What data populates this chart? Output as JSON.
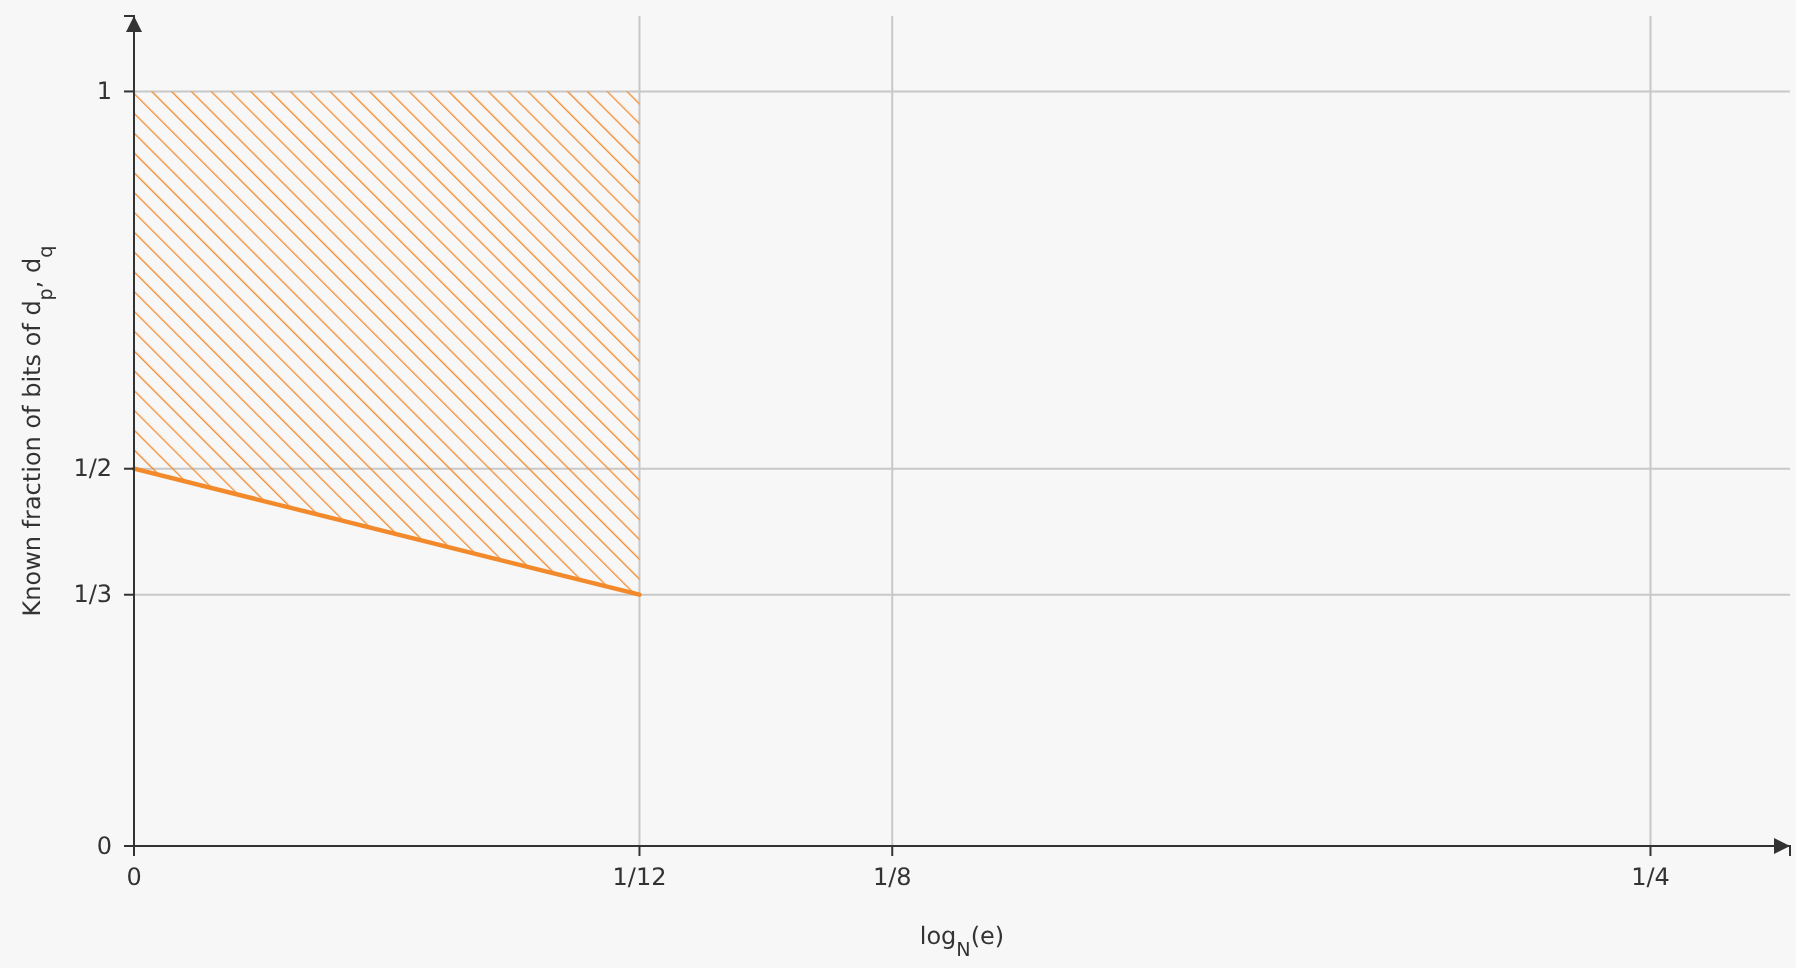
{
  "chart_data": {
    "type": "line",
    "xlabel": "log$_{N}$(e)",
    "ylabel": "Known fraction of bits of d$_{p}$, d$_{q}$",
    "xlim": [
      0,
      0.273
    ],
    "ylim": [
      0,
      1.1
    ],
    "xticks": [
      0,
      {
        "value": 0.08333,
        "label": "1/12"
      },
      {
        "value": 0.125,
        "label": "1/8"
      },
      {
        "value": 0.25,
        "label": "1/4"
      }
    ],
    "yticks": [
      0,
      {
        "value": 0.333,
        "label": "1/3"
      },
      {
        "value": 0.5,
        "label": "1/2"
      },
      1
    ],
    "grid": true,
    "series": [
      {
        "color": "#f28a2c",
        "x": [
          0,
          0.08333
        ],
        "values": [
          0.5,
          0.333
        ],
        "lower": [
          0.5,
          0.333
        ],
        "upper": [
          1,
          1
        ]
      }
    ]
  }
}
